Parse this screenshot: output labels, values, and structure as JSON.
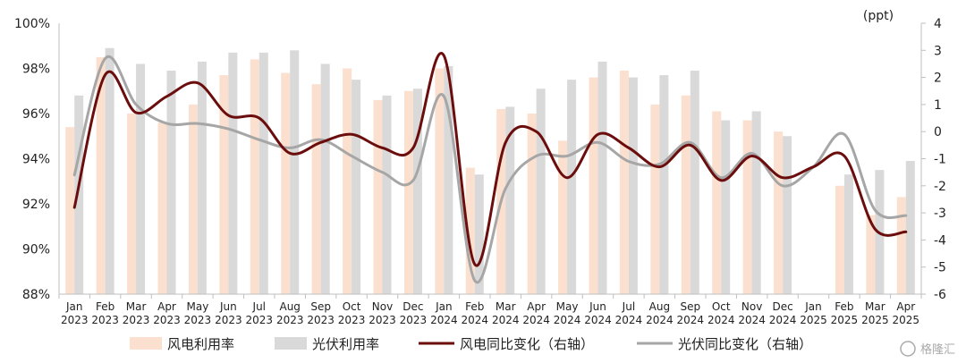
{
  "chart_data": {
    "type": "bar+line",
    "categories": [
      [
        "Jan",
        "2023"
      ],
      [
        "Feb",
        "2023"
      ],
      [
        "Mar",
        "2023"
      ],
      [
        "Apr",
        "2023"
      ],
      [
        "May",
        "2023"
      ],
      [
        "Jun",
        "2023"
      ],
      [
        "Jul",
        "2023"
      ],
      [
        "Aug",
        "2023"
      ],
      [
        "Sep",
        "2023"
      ],
      [
        "Oct",
        "2023"
      ],
      [
        "Nov",
        "2023"
      ],
      [
        "Dec",
        "2023"
      ],
      [
        "Jan",
        "2024"
      ],
      [
        "Feb",
        "2024"
      ],
      [
        "Mar",
        "2024"
      ],
      [
        "Apr",
        "2024"
      ],
      [
        "May",
        "2024"
      ],
      [
        "Jun",
        "2024"
      ],
      [
        "Jul",
        "2024"
      ],
      [
        "Aug",
        "2024"
      ],
      [
        "Sep",
        "2024"
      ],
      [
        "Oct",
        "2024"
      ],
      [
        "Nov",
        "2024"
      ],
      [
        "Dec",
        "2024"
      ],
      [
        "Jan",
        "2025"
      ],
      [
        "Feb",
        "2025"
      ],
      [
        "Mar",
        "2025"
      ],
      [
        "Apr",
        "2025"
      ]
    ],
    "left_axis": {
      "min": 88,
      "max": 100,
      "ticks": [
        "88%",
        "90%",
        "92%",
        "94%",
        "96%",
        "98%",
        "100%"
      ]
    },
    "right_axis": {
      "min": -6,
      "max": 4,
      "unit": "(ppt)",
      "ticks": [
        "-6",
        "-5",
        "-4",
        "-3",
        "-2",
        "-1",
        "0",
        "1",
        "2",
        "3",
        "4"
      ]
    },
    "series": [
      {
        "name": "风电利用率",
        "kind": "bar",
        "axis": "left",
        "color": "#fbe0cf",
        "values": [
          95.4,
          98.5,
          96.0,
          95.6,
          96.4,
          97.7,
          98.4,
          97.8,
          97.3,
          98.0,
          96.6,
          97.0,
          98.0,
          93.6,
          96.2,
          96.0,
          94.8,
          97.6,
          97.9,
          96.4,
          96.8,
          96.1,
          95.7,
          95.2,
          null,
          92.8,
          91.5,
          92.3
        ]
      },
      {
        "name": "光伏利用率",
        "kind": "bar",
        "axis": "left",
        "color": "#d9d9d9",
        "values": [
          96.8,
          98.9,
          98.2,
          97.9,
          98.3,
          98.7,
          98.7,
          98.8,
          98.2,
          97.5,
          96.8,
          97.1,
          98.1,
          93.3,
          96.3,
          97.1,
          97.5,
          98.3,
          97.6,
          97.7,
          97.9,
          95.7,
          96.1,
          95.0,
          null,
          93.3,
          93.5,
          93.9
        ]
      },
      {
        "name": "风电同比变化（右轴）",
        "kind": "line",
        "axis": "right",
        "color": "#6b0d0d",
        "values": [
          -2.8,
          2.1,
          0.7,
          1.3,
          1.8,
          0.6,
          0.5,
          -0.8,
          -0.4,
          -0.1,
          -0.6,
          -0.6,
          2.8,
          -4.9,
          -0.4,
          0.0,
          -1.7,
          -0.1,
          -0.6,
          -1.3,
          -0.5,
          -1.8,
          -0.9,
          -1.7,
          -1.3,
          -0.9,
          -3.6,
          -3.7
        ]
      },
      {
        "name": "光伏同比变化（右轴）",
        "kind": "line",
        "axis": "right",
        "color": "#a6a6a6",
        "values": [
          -1.6,
          2.7,
          1.0,
          0.3,
          0.3,
          0.1,
          -0.3,
          -0.6,
          -0.3,
          -0.9,
          -1.5,
          -1.8,
          1.3,
          -5.5,
          -2.1,
          -0.9,
          -0.9,
          -0.4,
          -1.1,
          -1.2,
          -0.4,
          -1.7,
          -0.8,
          -2.0,
          -1.3,
          -0.1,
          -2.9,
          -3.1
        ]
      }
    ],
    "legend_position": "bottom",
    "grid": false
  },
  "watermark": "格隆汇"
}
